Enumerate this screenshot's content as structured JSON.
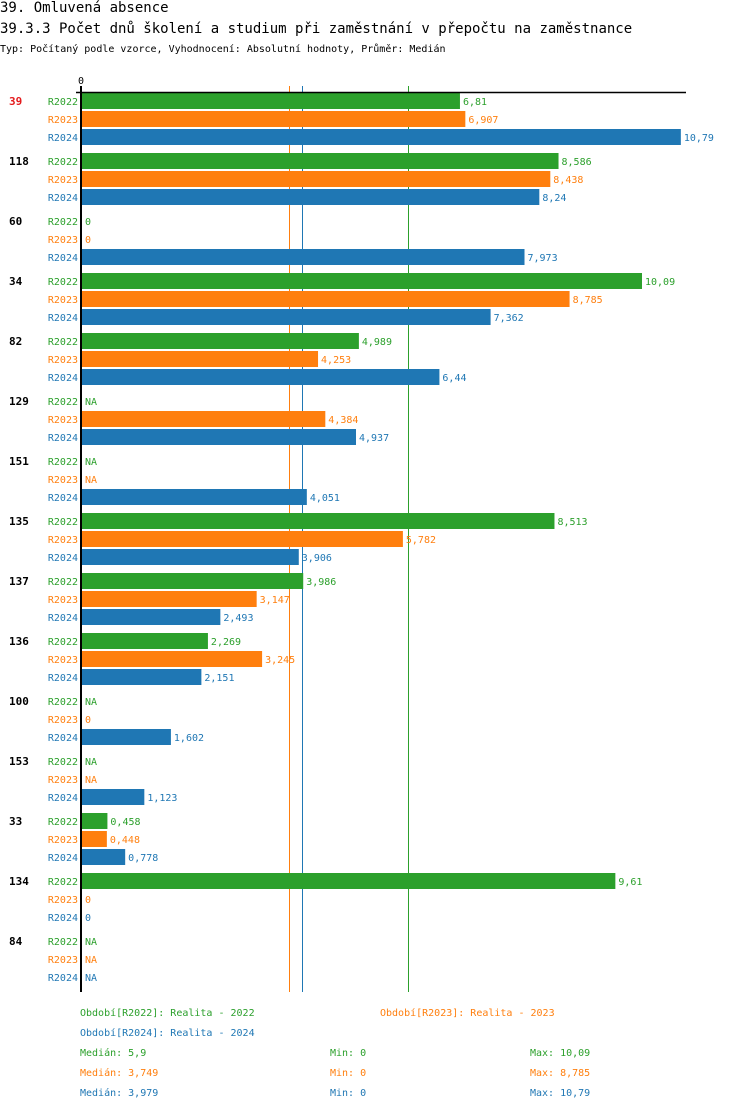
{
  "header": {
    "title": "39. Omluvená absence",
    "subtitle": "39.3.3 Počet dnů školení a studium při zaměstnání v přepočtu na zaměstnance",
    "info": "Typ: Počítaný podle vzorce, Vyhodnocení: Absolutní hodnoty, Průměr: Medián"
  },
  "colors": {
    "R2022": "#2ca02c",
    "R2023": "#ff7f0e",
    "R2024": "#1f77b4",
    "highlight": "#e41a1c",
    "axis": "#000000"
  },
  "chart_data": {
    "type": "bar",
    "orientation": "horizontal",
    "title": "39.3.3 Počet dnů školení a studium při zaměstnání v přepočtu na zaměstnance",
    "xlabel": "",
    "ylabel": "",
    "x_tick_labels": [
      "0"
    ],
    "xlim": [
      0,
      10.79
    ],
    "series_names": [
      "R2022",
      "R2023",
      "R2024"
    ],
    "categories": [
      "39",
      "118",
      "60",
      "34",
      "82",
      "129",
      "151",
      "135",
      "137",
      "136",
      "100",
      "153",
      "33",
      "134",
      "84"
    ],
    "highlighted_category": "39",
    "series": [
      {
        "name": "R2022",
        "values": [
          6.81,
          8.586,
          0,
          10.09,
          4.989,
          null,
          null,
          8.513,
          3.986,
          2.269,
          null,
          null,
          0.458,
          9.61,
          null
        ],
        "labels": [
          "6,81",
          "8,586",
          "0",
          "10,09",
          "4,989",
          "NA",
          "NA",
          "8,513",
          "3,986",
          "2,269",
          "NA",
          "NA",
          "0,458",
          "9,61",
          "NA"
        ]
      },
      {
        "name": "R2023",
        "values": [
          6.907,
          8.438,
          0,
          8.785,
          4.253,
          4.384,
          null,
          5.782,
          3.147,
          3.245,
          0,
          null,
          0.448,
          0,
          null
        ],
        "labels": [
          "6,907",
          "8,438",
          "0",
          "8,785",
          "4,253",
          "4,384",
          "NA",
          "5,782",
          "3,147",
          "3,245",
          "0",
          "NA",
          "0,448",
          "0",
          "NA"
        ]
      },
      {
        "name": "R2024",
        "values": [
          10.79,
          8.24,
          7.973,
          7.362,
          6.44,
          4.937,
          4.051,
          3.906,
          2.493,
          2.151,
          1.602,
          1.123,
          0.778,
          0,
          null
        ],
        "labels": [
          "10,79",
          "8,24",
          "7,973",
          "7,362",
          "6,44",
          "4,937",
          "4,051",
          "3,906",
          "2,493",
          "2,151",
          "1,602",
          "1,123",
          "0,778",
          "0",
          "NA"
        ]
      }
    ],
    "medians": {
      "R2022": 5.9,
      "R2023": 3.749,
      "R2024": 3.979
    },
    "grid": false
  },
  "legend": {
    "periods": [
      {
        "key": "R2022",
        "text": "Období[R2022]: Realita - 2022"
      },
      {
        "key": "R2023",
        "text": "Období[R2023]: Realita - 2023"
      },
      {
        "key": "R2024",
        "text": "Období[R2024]: Realita - 2024"
      }
    ],
    "stats": [
      {
        "key": "R2022",
        "median": "Medián: 5,9",
        "min": "Min: 0",
        "max": "Max: 10,09"
      },
      {
        "key": "R2023",
        "median": "Medián: 3,749",
        "min": "Min: 0",
        "max": "Max: 8,785"
      },
      {
        "key": "R2024",
        "median": "Medián: 3,979",
        "min": "Min: 0",
        "max": "Max: 10,79"
      }
    ]
  }
}
